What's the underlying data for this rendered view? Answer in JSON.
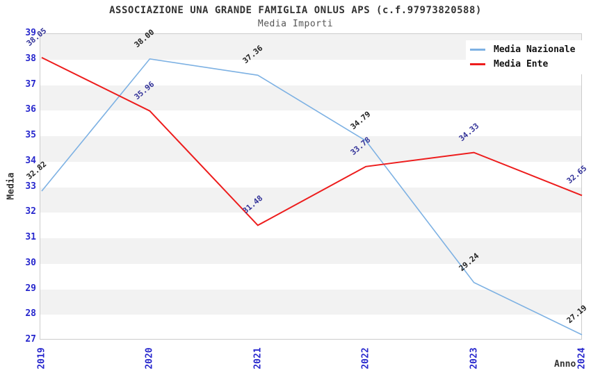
{
  "chart_data": {
    "type": "line",
    "title": "ASSOCIAZIONE UNA GRANDE FAMIGLIA ONLUS APS (c.f.97973820588)",
    "subtitle": "Media Importi",
    "xlabel": "Anno",
    "ylabel": "Media",
    "categories": [
      "2019",
      "2020",
      "2021",
      "2022",
      "2023",
      "2024"
    ],
    "yticks": [
      27,
      28,
      29,
      30,
      31,
      32,
      33,
      34,
      35,
      36,
      37,
      38,
      39
    ],
    "ylim": [
      27,
      39
    ],
    "grid": "alternating-horizontal-bands",
    "legend_position": "top-right",
    "value_labels": true,
    "series": [
      {
        "name": "Media Nazionale",
        "color": "#7db1e3",
        "label_color": "#222222",
        "values": [
          32.82,
          38.0,
          37.36,
          34.79,
          29.24,
          27.19
        ]
      },
      {
        "name": "Media Ente",
        "color": "#ed1c1c",
        "label_color": "#333399",
        "values": [
          38.05,
          35.96,
          31.48,
          33.78,
          34.33,
          32.65
        ]
      }
    ],
    "colors": {
      "tick_label": "#2727cd",
      "band_gray": "#f2f2f2",
      "band_white": "#ffffff",
      "plot_border": "#cccccc",
      "title_text": "#333333",
      "subtitle_text": "#555555"
    }
  }
}
